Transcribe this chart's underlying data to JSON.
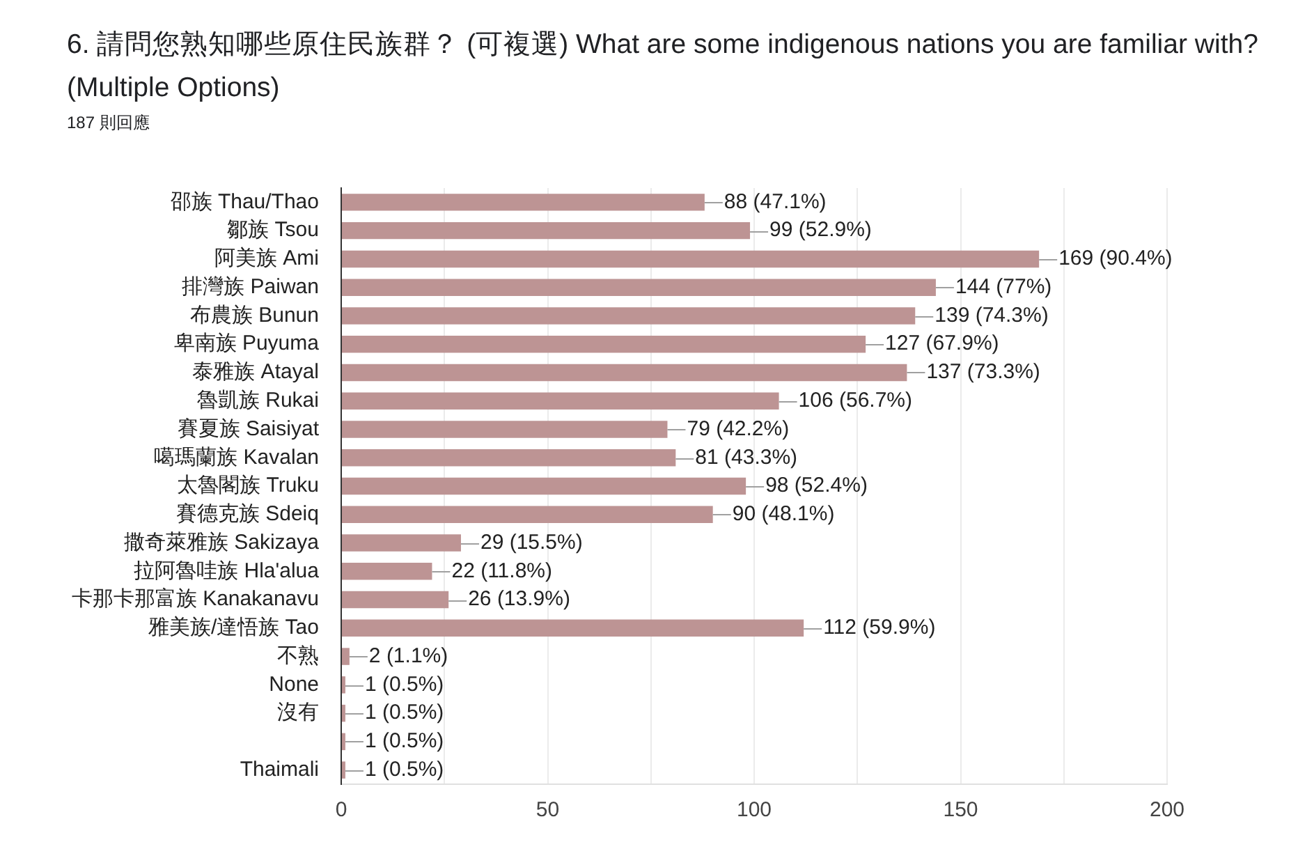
{
  "chart_data": {
    "type": "bar",
    "orientation": "horizontal",
    "title": "6. 請問您熟知哪些原住民族群？ (可複選) What are some indigenous nations you are familiar with? (Multiple Options)",
    "subtitle": "187 則回應",
    "categories": [
      "邵族 Thau/Thao",
      "鄒族 Tsou",
      "阿美族 Ami",
      "排灣族 Paiwan",
      "布農族 Bunun",
      "卑南族 Puyuma",
      "泰雅族 Atayal",
      "魯凱族 Rukai",
      "賽夏族 Saisiyat",
      "噶瑪蘭族 Kavalan",
      "太魯閣族 Truku",
      "賽德克族 Sdeiq",
      "撒奇萊雅族 Sakizaya",
      "拉阿魯哇族 Hla'alua",
      "卡那卡那富族 Kanakanavu",
      "雅美族/達悟族 Tao",
      "不熟",
      "None",
      "沒有",
      null,
      "Thaimali"
    ],
    "values": [
      88,
      99,
      169,
      144,
      139,
      127,
      137,
      106,
      79,
      81,
      98,
      90,
      29,
      22,
      26,
      112,
      2,
      1,
      1,
      1,
      1
    ],
    "value_labels": [
      "88 (47.1%)",
      "99 (52.9%)",
      "169 (90.4%)",
      "144 (77%)",
      "139 (74.3%)",
      "127 (67.9%)",
      "137 (73.3%)",
      "106 (56.7%)",
      "79 (42.2%)",
      "81 (43.3%)",
      "98 (52.4%)",
      "90 (48.1%)",
      "29 (15.5%)",
      "22 (11.8%)",
      "26 (13.9%)",
      "112 (59.9%)",
      "2 (1.1%)",
      "1 (0.5%)",
      "1 (0.5%)",
      "1 (0.5%)",
      "1 (0.5%)"
    ],
    "color": "#bd9494",
    "xlim": [
      0,
      200
    ],
    "xticks": [
      0,
      {
        "value": 25,
        "label": null
      },
      50,
      {
        "value": 75,
        "label": null
      },
      100,
      {
        "value": 125,
        "label": null
      },
      150,
      {
        "value": 175,
        "label": null
      },
      200
    ],
    "grid": "x"
  }
}
